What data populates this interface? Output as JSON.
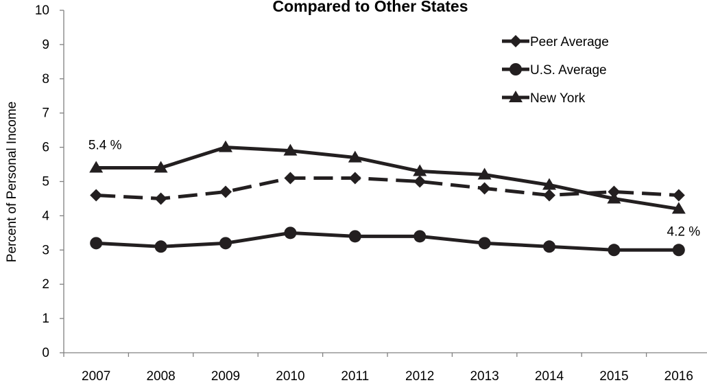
{
  "chart_data": {
    "type": "line",
    "title": "Compared to Other States",
    "xlabel": "",
    "ylabel": "Percent of Personal Income",
    "categories": [
      "2007",
      "2008",
      "2009",
      "2010",
      "2011",
      "2012",
      "2013",
      "2014",
      "2015",
      "2016"
    ],
    "ylim": [
      0,
      10
    ],
    "yticks": [
      "0",
      "1",
      "2",
      "3",
      "4",
      "5",
      "6",
      "7",
      "8",
      "9",
      "10"
    ],
    "grid": false,
    "legend_position": "top-right",
    "series": [
      {
        "name": "Peer Average",
        "marker": "diamond",
        "line_style": "dashed",
        "color": "#231f20",
        "values": [
          4.6,
          4.5,
          4.7,
          5.1,
          5.1,
          5.0,
          4.8,
          4.6,
          4.7,
          4.6
        ]
      },
      {
        "name": "U.S. Average",
        "marker": "circle",
        "line_style": "solid",
        "color": "#231f20",
        "values": [
          3.2,
          3.1,
          3.2,
          3.5,
          3.4,
          3.4,
          3.2,
          3.1,
          3.0,
          3.0
        ]
      },
      {
        "name": "New York",
        "marker": "triangle",
        "line_style": "solid",
        "color": "#231f20",
        "values": [
          5.4,
          5.4,
          6.0,
          5.9,
          5.7,
          5.3,
          5.2,
          4.9,
          4.5,
          4.2
        ]
      }
    ],
    "annotations": [
      {
        "text": "5.4 %",
        "series": "New York",
        "category": "2007",
        "value": 5.4
      },
      {
        "text": "4.2 %",
        "series": "New York",
        "category": "2016",
        "value": 4.2
      }
    ]
  }
}
